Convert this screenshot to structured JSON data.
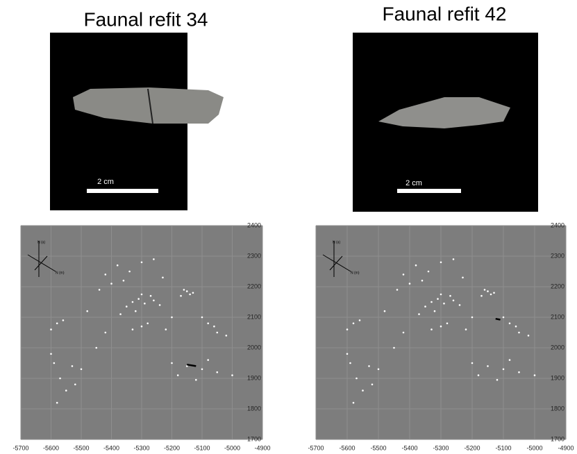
{
  "chart_data": [
    {
      "type": "scatter",
      "title": "Faunal refit 34",
      "scale_label": "2 cm",
      "compass_labels": [
        "N (a)",
        "N (m)"
      ],
      "xlim": [
        -5700,
        -4900
      ],
      "ylim": [
        1700,
        2400
      ],
      "xticks": [
        -5700,
        -5600,
        -5500,
        -5400,
        -5300,
        -5200,
        -5100,
        -5000,
        -4900
      ],
      "yticks": [
        1700,
        1800,
        1900,
        2000,
        2100,
        2200,
        2300,
        2400
      ],
      "grid": true,
      "series": [
        {
          "color": "#ffffff",
          "x": [
            -5330,
            -5310,
            -5290,
            -5350,
            -5270,
            -5260,
            -5320,
            -5370,
            -5240,
            -5300,
            -5150,
            -5140,
            -5160,
            -5130,
            -5170,
            -5420,
            -5380,
            -5340,
            -5300,
            -5260,
            -5400,
            -5440,
            -5230,
            -5360,
            -5300,
            -5330,
            -5280,
            -5580,
            -5600,
            -5560,
            -5590,
            -5570,
            -5550,
            -5580,
            -5530,
            -5500,
            -5600,
            -5520,
            -5200,
            -5150,
            -5100,
            -5180,
            -5080,
            -5050,
            -5120,
            -5080,
            -5050,
            -5020,
            -5100,
            -5060,
            -5450,
            -5420,
            -5200,
            -5220,
            -5480,
            -5000
          ],
          "values": [
            2150,
            2160,
            2145,
            2135,
            2170,
            2155,
            2120,
            2110,
            2140,
            2175,
            2185,
            2175,
            2190,
            2180,
            2170,
            2240,
            2270,
            2250,
            2280,
            2290,
            2210,
            2190,
            2230,
            2220,
            2070,
            2060,
            2080,
            2080,
            2060,
            2090,
            1950,
            1900,
            1860,
            1820,
            1940,
            1930,
            1980,
            1880,
            1950,
            1940,
            1930,
            1910,
            1960,
            1920,
            1895,
            2080,
            2050,
            2040,
            2100,
            2070,
            2000,
            2050,
            2100,
            2060,
            2120,
            1910
          ]
        },
        {
          "color": "#000000",
          "line": true,
          "x": [
            -5150,
            -5120
          ],
          "values": [
            1945,
            1940
          ]
        }
      ]
    },
    {
      "type": "scatter",
      "title": "Faunal refit 42",
      "scale_label": "2 cm",
      "compass_labels": [
        "N (a)",
        "N (m)"
      ],
      "xlim": [
        -5700,
        -4900
      ],
      "ylim": [
        1700,
        2400
      ],
      "xticks": [
        -5700,
        -5600,
        -5500,
        -5400,
        -5300,
        -5200,
        -5100,
        -5000,
        -4900
      ],
      "yticks": [
        1700,
        1800,
        1900,
        2000,
        2100,
        2200,
        2300,
        2400
      ],
      "grid": true,
      "series": [
        {
          "color": "#ffffff",
          "x": [
            -5330,
            -5310,
            -5290,
            -5350,
            -5270,
            -5260,
            -5320,
            -5370,
            -5240,
            -5300,
            -5150,
            -5140,
            -5160,
            -5130,
            -5170,
            -5420,
            -5380,
            -5340,
            -5300,
            -5260,
            -5400,
            -5440,
            -5230,
            -5360,
            -5300,
            -5330,
            -5280,
            -5580,
            -5600,
            -5560,
            -5590,
            -5570,
            -5550,
            -5580,
            -5530,
            -5500,
            -5600,
            -5520,
            -5200,
            -5150,
            -5100,
            -5180,
            -5080,
            -5050,
            -5120,
            -5080,
            -5050,
            -5020,
            -5100,
            -5060,
            -5450,
            -5420,
            -5200,
            -5220,
            -5480,
            -5000
          ],
          "values": [
            2150,
            2160,
            2145,
            2135,
            2170,
            2155,
            2120,
            2110,
            2140,
            2175,
            2185,
            2175,
            2190,
            2180,
            2170,
            2240,
            2270,
            2250,
            2280,
            2290,
            2210,
            2190,
            2230,
            2220,
            2070,
            2060,
            2080,
            2080,
            2060,
            2090,
            1950,
            1900,
            1860,
            1820,
            1940,
            1930,
            1980,
            1880,
            1950,
            1940,
            1930,
            1910,
            1960,
            1920,
            1895,
            2080,
            2050,
            2040,
            2100,
            2070,
            2000,
            2050,
            2100,
            2060,
            2120,
            1910
          ]
        },
        {
          "color": "#000000",
          "line": true,
          "x": [
            -5125,
            -5110
          ],
          "values": [
            2095,
            2092
          ]
        }
      ]
    }
  ]
}
